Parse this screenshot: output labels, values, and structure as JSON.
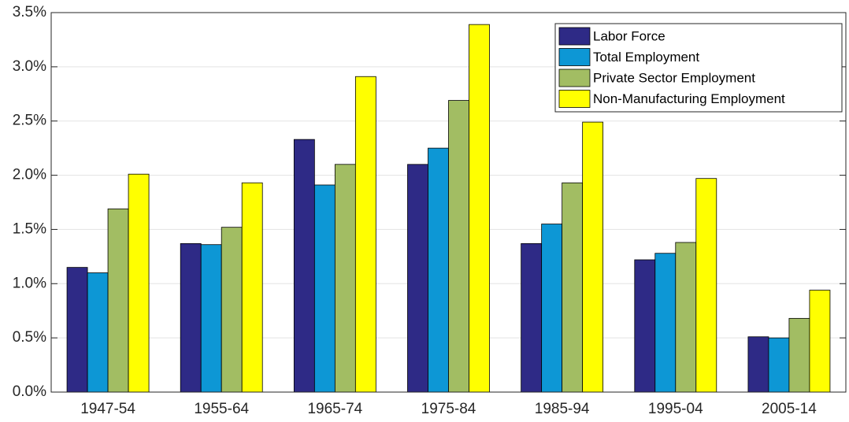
{
  "chart_data": {
    "type": "bar",
    "categories": [
      "1947-54",
      "1955-64",
      "1965-74",
      "1975-84",
      "1985-94",
      "1995-04",
      "2005-14"
    ],
    "series": [
      {
        "name": "Labor Force",
        "color": "#2e2a86",
        "values": [
          1.15,
          1.37,
          2.33,
          2.1,
          1.37,
          1.22,
          0.51
        ]
      },
      {
        "name": "Total Employment",
        "color": "#0d97d5",
        "values": [
          1.1,
          1.36,
          1.91,
          2.25,
          1.55,
          1.28,
          0.5
        ]
      },
      {
        "name": "Private Sector Employment",
        "color": "#a2bd63",
        "values": [
          1.69,
          1.52,
          2.1,
          2.69,
          1.93,
          1.38,
          0.68
        ]
      },
      {
        "name": "Non-Manufacturing Employment",
        "color": "#ffff00",
        "values": [
          2.01,
          1.93,
          2.91,
          3.39,
          2.49,
          1.97,
          0.94
        ]
      }
    ],
    "ylim": [
      0,
      3.5
    ],
    "yticks": [
      {
        "value": 0,
        "label": "0.0%"
      },
      {
        "value": 0.5,
        "label": "0.5%"
      },
      {
        "value": 1.0,
        "label": "1.0%"
      },
      {
        "value": 1.5,
        "label": "1.5%"
      },
      {
        "value": 2.0,
        "label": "2.0%"
      },
      {
        "value": 2.5,
        "label": "2.5%"
      },
      {
        "value": 3.0,
        "label": "3.0%"
      },
      {
        "value": 3.5,
        "label": "3.5%"
      }
    ],
    "grid": true,
    "legend": "upper-right"
  }
}
